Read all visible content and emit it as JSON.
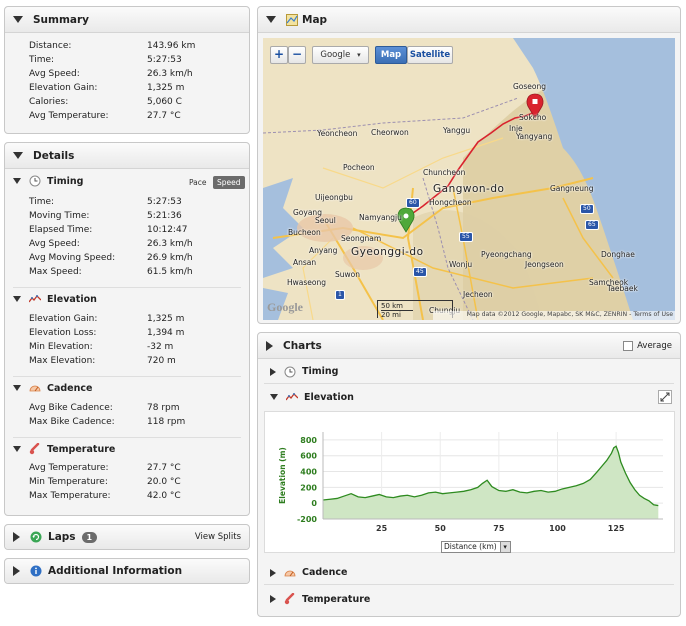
{
  "summary": {
    "title": "Summary",
    "rows": [
      {
        "label": "Distance:",
        "value": "143.96 km"
      },
      {
        "label": "Time:",
        "value": "5:27:53"
      },
      {
        "label": "Avg Speed:",
        "value": "26.3 km/h"
      },
      {
        "label": "Elevation Gain:",
        "value": "1,325 m"
      },
      {
        "label": "Calories:",
        "value": "5,060 C"
      },
      {
        "label": "Avg Temperature:",
        "value": "27.7 °C"
      }
    ]
  },
  "details": {
    "title": "Details",
    "timing": {
      "title": "Timing",
      "pace_label": "Pace",
      "speed_label": "Speed",
      "rows": [
        {
          "label": "Time:",
          "value": "5:27:53"
        },
        {
          "label": "Moving Time:",
          "value": "5:21:36"
        },
        {
          "label": "Elapsed Time:",
          "value": "10:12:47"
        },
        {
          "label": "Avg Speed:",
          "value": "26.3 km/h"
        },
        {
          "label": "Avg Moving Speed:",
          "value": "26.9 km/h"
        },
        {
          "label": "Max Speed:",
          "value": "61.5 km/h"
        }
      ]
    },
    "elevation": {
      "title": "Elevation",
      "rows": [
        {
          "label": "Elevation Gain:",
          "value": "1,325 m"
        },
        {
          "label": "Elevation Loss:",
          "value": "1,394 m"
        },
        {
          "label": "Min Elevation:",
          "value": "-32 m"
        },
        {
          "label": "Max Elevation:",
          "value": "720 m"
        }
      ]
    },
    "cadence": {
      "title": "Cadence",
      "rows": [
        {
          "label": "Avg Bike Cadence:",
          "value": "78 rpm"
        },
        {
          "label": "Max Bike Cadence:",
          "value": "118 rpm"
        }
      ]
    },
    "temperature": {
      "title": "Temperature",
      "rows": [
        {
          "label": "Avg Temperature:",
          "value": "27.7 °C"
        },
        {
          "label": "Min Temperature:",
          "value": "20.0 °C"
        },
        {
          "label": "Max Temperature:",
          "value": "42.0 °C"
        }
      ]
    }
  },
  "laps": {
    "title": "Laps",
    "count": "1",
    "view_splits": "View Splits"
  },
  "additional": {
    "title": "Additional Information"
  },
  "map": {
    "title": "Map",
    "zoom_in": "+",
    "zoom_out": "−",
    "provider": "Google",
    "type_map": "Map",
    "type_satellite": "Satellite",
    "scale_km": "50 km",
    "scale_mi": "20 mi",
    "attribution": "Map data ©2012 Google, Mapabc, SK M&C, ZENRIN - Terms of Use",
    "logo": "Google",
    "places": [
      {
        "name": "Goseong",
        "bold": false
      },
      {
        "name": "Sokcho",
        "bold": false
      },
      {
        "name": "Yangyang",
        "bold": false
      },
      {
        "name": "Yeoncheon",
        "bold": false
      },
      {
        "name": "Cheorwon",
        "bold": false
      },
      {
        "name": "Yanggu",
        "bold": false
      },
      {
        "name": "Inje",
        "bold": false
      },
      {
        "name": "Pocheon",
        "bold": false
      },
      {
        "name": "Chuncheon",
        "bold": false
      },
      {
        "name": "Gangwon-do",
        "bold": true
      },
      {
        "name": "Gangneung",
        "bold": false
      },
      {
        "name": "Uijeongbu",
        "bold": false
      },
      {
        "name": "Goyang",
        "bold": false
      },
      {
        "name": "Seoul",
        "bold": false
      },
      {
        "name": "Namyangju",
        "bold": false
      },
      {
        "name": "Hongcheon",
        "bold": false
      },
      {
        "name": "Bucheon",
        "bold": false
      },
      {
        "name": "Seongnam",
        "bold": false
      },
      {
        "name": "Gyeonggi-do",
        "bold": true
      },
      {
        "name": "Anyang",
        "bold": false
      },
      {
        "name": "Ansan",
        "bold": false
      },
      {
        "name": "Suwon",
        "bold": false
      },
      {
        "name": "Hwaseong",
        "bold": false
      },
      {
        "name": "Wonju",
        "bold": false
      },
      {
        "name": "Pyeongchang",
        "bold": false
      },
      {
        "name": "Jeongseon",
        "bold": false
      },
      {
        "name": "Donghae",
        "bold": false
      },
      {
        "name": "Samcheok",
        "bold": false
      },
      {
        "name": "Taebaek",
        "bold": false
      },
      {
        "name": "Jecheon",
        "bold": false
      },
      {
        "name": "Chungju",
        "bold": false
      }
    ],
    "road_shields": [
      "60",
      "55",
      "50",
      "65",
      "45",
      "1"
    ]
  },
  "charts": {
    "title": "Charts",
    "average_label": "Average",
    "rows": {
      "timing": "Timing",
      "elevation": "Elevation",
      "cadence": "Cadence",
      "temperature": "Temperature"
    },
    "xaxis_selector": "Distance (km)"
  },
  "chart_data": {
    "type": "area",
    "title": "",
    "xlabel": "Distance (km)",
    "ylabel": "Elevation (m)",
    "xlim": [
      0,
      145
    ],
    "ylim": [
      -200,
      900
    ],
    "xticks": [
      25,
      50,
      75,
      100,
      125
    ],
    "yticks": [
      -200,
      0,
      200,
      400,
      600,
      800
    ],
    "grid": true,
    "color": "#2e8b20",
    "fill": "#cfe6c4",
    "x": [
      0,
      3,
      6,
      9,
      12,
      15,
      18,
      21,
      24,
      27,
      30,
      33,
      36,
      39,
      42,
      45,
      48,
      51,
      54,
      57,
      60,
      63,
      66,
      68,
      70,
      72,
      75,
      78,
      81,
      84,
      87,
      90,
      93,
      96,
      99,
      102,
      105,
      108,
      111,
      114,
      117,
      119,
      121,
      123,
      124,
      125,
      126,
      127,
      129,
      131,
      133,
      135,
      137,
      139,
      141,
      143
    ],
    "y": [
      40,
      50,
      60,
      90,
      120,
      80,
      70,
      90,
      110,
      80,
      70,
      90,
      100,
      80,
      100,
      130,
      140,
      120,
      130,
      140,
      150,
      170,
      200,
      250,
      290,
      210,
      160,
      150,
      170,
      140,
      130,
      150,
      160,
      140,
      150,
      180,
      200,
      220,
      250,
      300,
      400,
      470,
      540,
      630,
      700,
      720,
      640,
      520,
      380,
      260,
      170,
      100,
      60,
      30,
      -20,
      -30
    ]
  },
  "colors": {
    "accent": "#2e8b20",
    "speed_active": "#6b6b6b",
    "map_water": "#a5bfdd",
    "route": "#d9232e"
  }
}
